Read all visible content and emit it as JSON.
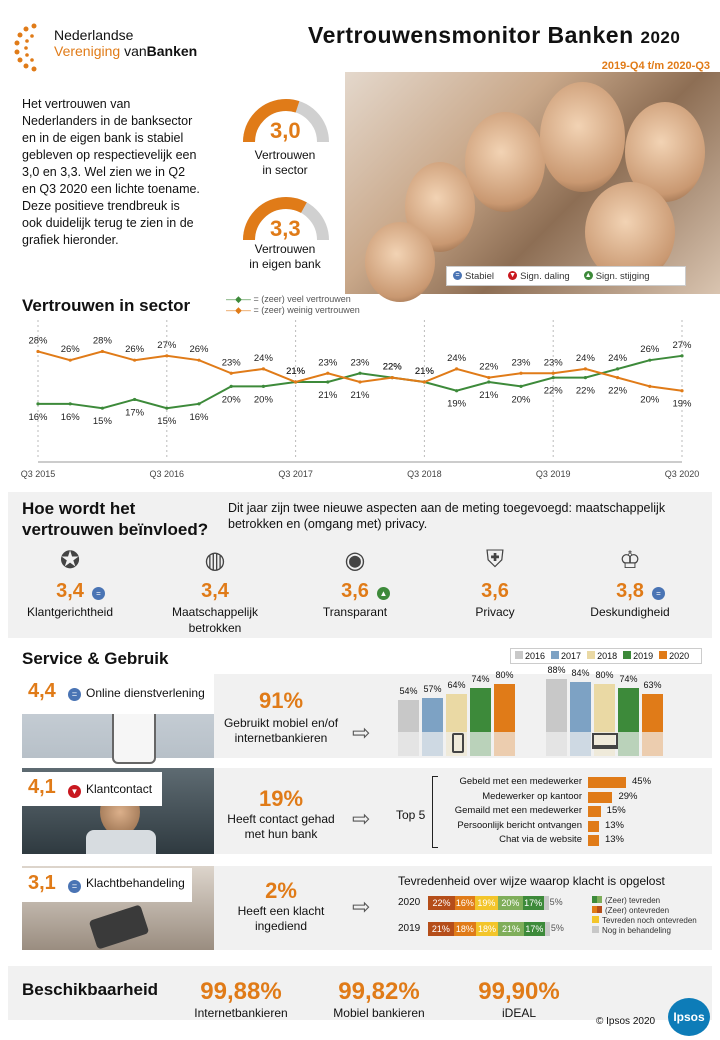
{
  "header": {
    "org_line1": "Nederlandse",
    "org_line2_a": "Vereniging",
    "org_line2_b": "van",
    "org_line2_c": "Banken",
    "title": "Vertrouwensmonitor  Banken",
    "year": "2020",
    "period": "2019-Q4 t/m 2020-Q3"
  },
  "intro": {
    "text": "Het vertrouwen van Nederlanders in de banksector en in de eigen bank is stabiel gebleven op respectievelijk een 3,0 en 3,3. Wel zien we in Q2 en Q3 2020 een lichte toename. Deze positieve trendbreuk is ook duidelijk terug te zien in de grafiek hieronder."
  },
  "gauges": [
    {
      "value": "3,0",
      "label1": "Vertrouwen",
      "label2": "in sector",
      "fill": 0.6
    },
    {
      "value": "3,3",
      "label1": "Vertrouwen",
      "label2": "in eigen bank",
      "fill": 0.66
    }
  ],
  "legend": {
    "stable": "Stabiel",
    "down": "Sign. daling",
    "up": "Sign. stijging"
  },
  "chart_data": {
    "type": "line",
    "title": "Vertrouwen in sector",
    "x_ticks": [
      "Q3 2015",
      "Q3 2016",
      "Q3 2017",
      "Q3 2018",
      "Q3 2019",
      "Q3 2020"
    ],
    "series": [
      {
        "name": "= (zeer) veel vertrouwen",
        "color": "#3d8a3a",
        "values": [
          16,
          16,
          15,
          17,
          15,
          16,
          20,
          20,
          21,
          21,
          23,
          22,
          21,
          19,
          21,
          20,
          22,
          22,
          24,
          26,
          27
        ],
        "labels": [
          "16%",
          "16%",
          "15%",
          "17%",
          "15%",
          "16%",
          "20%",
          "20%",
          "21%",
          "21%",
          "23%",
          "22%",
          "21%",
          "19%",
          "21%",
          "20%",
          "22%",
          "22%",
          "24%",
          "26%",
          "27%"
        ]
      },
      {
        "name": "= (zeer) weinig vertrouwen",
        "color": "#e07b18",
        "values": [
          28,
          26,
          28,
          26,
          27,
          26,
          23,
          24,
          21,
          23,
          21,
          22,
          21,
          24,
          22,
          23,
          23,
          24,
          22,
          20,
          19
        ],
        "labels": [
          "28%",
          "26%",
          "28%",
          "26%",
          "27%",
          "26%",
          "23%",
          "24%",
          "21%",
          "23%",
          "21%",
          "22%",
          "21%",
          "24%",
          "22%",
          "23%",
          "23%",
          "24%",
          "22%",
          "20%",
          "19%"
        ]
      }
    ],
    "ylim": [
      10,
      32
    ]
  },
  "influence": {
    "title1": "Hoe wordt het",
    "title2": "vertrouwen beïnvloed?",
    "note": "Dit jaar zijn twee nieuwe aspecten aan de meting toegevoegd: maatschappelijk betrokken en (omgang met) privacy.",
    "items": [
      {
        "score": "3,4",
        "label": "Klantgerichtheid",
        "status": "stable",
        "icon": "user-star-icon"
      },
      {
        "score": "3,4",
        "label": "Maatschappelijk betrokken",
        "status": "",
        "icon": "globe-icon"
      },
      {
        "score": "3,6",
        "label": "Transparant",
        "status": "up",
        "icon": "eye-icon"
      },
      {
        "score": "3,6",
        "label": "Privacy",
        "status": "",
        "icon": "shield-icon"
      },
      {
        "score": "3,8",
        "label": "Deskundigheid",
        "status": "stable",
        "icon": "trophy-icon"
      }
    ]
  },
  "service": {
    "title": "Service & Gebruik",
    "years": [
      "2016",
      "2017",
      "2018",
      "2019",
      "2020"
    ],
    "year_colors": [
      "#c8c8c8",
      "#7da2c4",
      "#ead9a4",
      "#3d8a3a",
      "#e07b18"
    ],
    "online": {
      "score": "4,4",
      "label": "Online dienstverlening",
      "pct": "91%",
      "desc": "Gebruikt mobiel en/of internetbankieren",
      "mobile": [
        "54%",
        "57%",
        "64%",
        "74%",
        "80%"
      ],
      "mobile_vals": [
        54,
        57,
        64,
        74,
        80
      ],
      "internet": [
        "88%",
        "84%",
        "80%",
        "74%",
        "63%"
      ],
      "internet_vals": [
        88,
        84,
        80,
        74,
        63
      ]
    },
    "contact": {
      "score": "4,1",
      "label": "Klantcontact",
      "pct": "19%",
      "desc": "Heeft contact gehad met hun bank",
      "top": "Top 5",
      "items": [
        {
          "label": "Gebeld met een medewerker",
          "value": "45%",
          "v": 45
        },
        {
          "label": "Medewerker op kantoor",
          "value": "29%",
          "v": 29
        },
        {
          "label": "Gemaild met een medewerker",
          "value": "15%",
          "v": 15
        },
        {
          "label": "Persoonlijk bericht ontvangen",
          "value": "13%",
          "v": 13
        },
        {
          "label": "Chat via de website",
          "value": "13%",
          "v": 13
        }
      ]
    },
    "complaint": {
      "score": "3,1",
      "label": "Klachtbehandeling",
      "pct": "2%",
      "desc": "Heeft een klacht ingediend",
      "chart_title": "Tevredenheid  over wijze waarop klacht is opgelost",
      "rows": [
        {
          "year": "2020",
          "segs": [
            "22%",
            "16%",
            "19%",
            "20%",
            "17%"
          ],
          "rest": "5%",
          "v": [
            22,
            16,
            19,
            20,
            17
          ]
        },
        {
          "year": "2019",
          "segs": [
            "21%",
            "18%",
            "18%",
            "21%",
            "17%"
          ],
          "rest": "5%",
          "v": [
            21,
            18,
            18,
            21,
            17
          ]
        }
      ],
      "legend": [
        "(Zeer) tevreden",
        "(Zeer) ontevreden",
        "Tevreden noch ontevreden",
        "Nog in behandeling"
      ]
    }
  },
  "availability": {
    "title": "Beschikbaarheid",
    "items": [
      {
        "value": "99,88%",
        "label": "Internetbankieren"
      },
      {
        "value": "99,82%",
        "label": "Mobiel bankieren"
      },
      {
        "value": "99,90%",
        "label": "iDEAL"
      }
    ],
    "copyright": "© Ipsos 2020",
    "brand": "Ipsos"
  }
}
